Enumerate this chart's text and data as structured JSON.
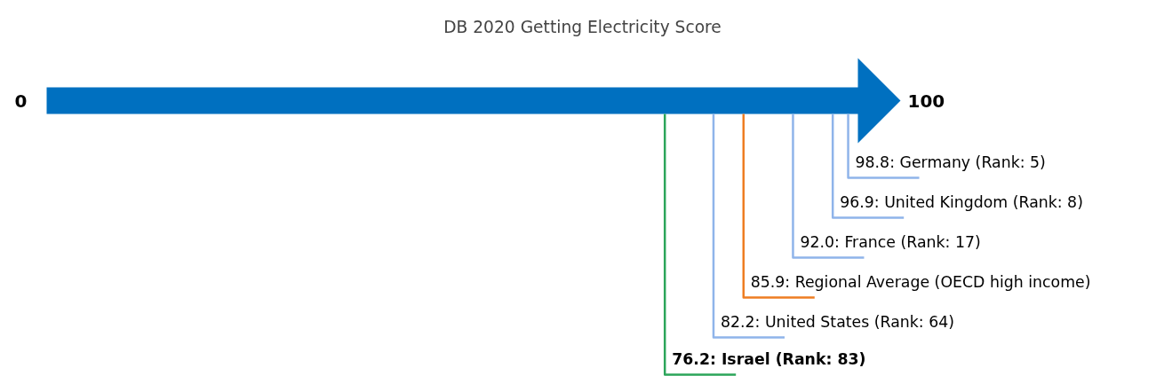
{
  "chart_data": {
    "type": "other",
    "title": "DB 2020 Getting Electricity Score",
    "annotations": [
      "0",
      "100"
    ],
    "values": [
      98.8,
      96.9,
      92.0,
      85.9,
      82.2,
      76.2
    ],
    "value_labels": [
      "98.8: Germany (Rank: 5)",
      "96.9: United Kingdom (Rank: 8)",
      "92.0: France (Rank: 17)",
      "85.9: Regional Average (OECD high income)",
      "82.2: United States (Rank: 64)",
      "76.2: Israel (Rank: 83)"
    ],
    "colors": [
      "#8fb4ea",
      "#8fb4ea",
      "#8fb4ea",
      "#ee7d22",
      "#8fb4ea",
      "#2ca55a"
    ],
    "color": "#0070c0"
  }
}
